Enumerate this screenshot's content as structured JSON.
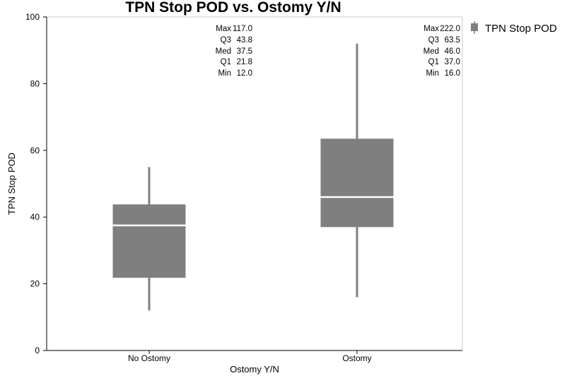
{
  "chart_data": {
    "type": "box",
    "title": "TPN Stop POD vs. Ostomy Y/N",
    "xlabel": "Ostomy Y/N",
    "ylabel": "TPN Stop POD",
    "ylim": [
      0,
      100
    ],
    "yticks": [
      "0",
      "20",
      "40",
      "60",
      "80",
      "100"
    ],
    "categories": [
      "No Ostomy",
      "Ostomy"
    ],
    "legend": {
      "position": "right",
      "entries": [
        "TPN Stop POD"
      ]
    },
    "series": [
      {
        "name": "TPN Stop POD",
        "boxes": [
          {
            "category": "No Ostomy",
            "whisker_low": 12.0,
            "q1": 21.8,
            "median": 37.5,
            "q3": 43.8,
            "whisker_high": 55.0
          },
          {
            "category": "Ostomy",
            "whisker_low": 16.0,
            "q1": 37.0,
            "median": 46.0,
            "q3": 63.5,
            "whisker_high": 92.0
          }
        ]
      }
    ],
    "stat_labels": [
      [
        {
          "label": "Max",
          "value": "117.0"
        },
        {
          "label": "Q3",
          "value": "43.8"
        },
        {
          "label": "Med",
          "value": "37.5"
        },
        {
          "label": "Q1",
          "value": "21.8"
        },
        {
          "label": "Min",
          "value": "12.0"
        }
      ],
      [
        {
          "label": "Max",
          "value": "222.0"
        },
        {
          "label": "Q3",
          "value": "63.5"
        },
        {
          "label": "Med",
          "value": "46.0"
        },
        {
          "label": "Q1",
          "value": "37.0"
        },
        {
          "label": "Min",
          "value": "16.0"
        }
      ]
    ],
    "colors": {
      "box": "#7f7f7f",
      "median": "#ffffff",
      "frame": "#c8c8c8"
    }
  }
}
